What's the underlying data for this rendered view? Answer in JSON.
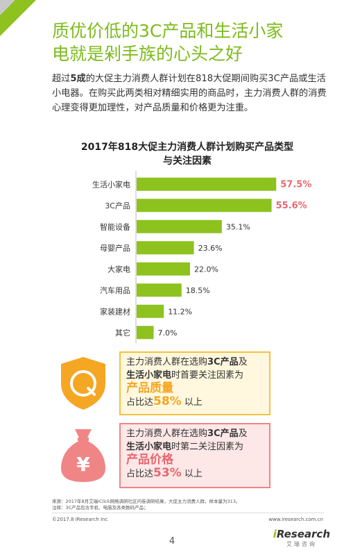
{
  "header": {
    "title_line1": "质优价低的3C产品和生活小家",
    "title_line2": "电就是剁手族的心头之好"
  },
  "intro": {
    "part1": "超过",
    "bold": "5成",
    "part2": "的大促主力消费人群计划在818大促期间购买3C产品或生活小电器。在购买此两类相对精细实用的商品时，主力消费人群的消费心理变得更加理性，对产品质量和价格更为注重。"
  },
  "chart_data": {
    "type": "bar",
    "orientation": "horizontal",
    "title": "2017年818大促主力消费人群计划购买产品类型与关注因素",
    "categories": [
      "生活小家电",
      "3C产品",
      "智能设备",
      "母婴产品",
      "大家电",
      "汽车用品",
      "家装建材",
      "其它"
    ],
    "values": [
      57.5,
      55.6,
      35.1,
      23.6,
      22.0,
      18.5,
      11.2,
      7.0
    ],
    "value_labels": [
      "57.5%",
      "55.6%",
      "35.1%",
      "23.6%",
      "22.0%",
      "18.5%",
      "11.2%",
      "7.0%"
    ],
    "highlight": [
      true,
      true,
      false,
      false,
      false,
      false,
      false,
      false
    ],
    "xlim": [
      0,
      60
    ],
    "bar_color": "#8dc21f",
    "highlight_color": "#e8676f",
    "grid": false,
    "legend": "none",
    "title_line1": "2017年818大促主力消费人群计划购买产品类型",
    "title_line2": "与关注因素"
  },
  "box1": {
    "line1_a": "主力消费人群在选购",
    "line1_b": "3C产品",
    "line1_c": "及",
    "line2_a": "生活小家电",
    "line2_b": "时首要关注因素为",
    "factor": "产品质量",
    "pct_prefix": "占比达",
    "pct": "58%",
    "pct_suffix": " 以上",
    "icon": "shield-q-icon",
    "icon_letter": "Q",
    "color": "#f5a623"
  },
  "box2": {
    "line1_a": "主力消费人群在选购",
    "line1_b": "3C产品",
    "line1_c": "及",
    "line2_a": "生活小家电",
    "line2_b": "时第二关注因素为",
    "factor": "产品价格",
    "pct_prefix": "占比达",
    "pct": "53%",
    "pct_suffix": " 以上",
    "icon": "money-bag-yen-icon",
    "icon_symbol": "¥",
    "color": "#e8676f"
  },
  "notes": {
    "source": "来源：2017年8月艾瑞iClick网络调研社区问卷调研结果，大促主力消费人群，样本量为313。",
    "note": "注释：3C产品包含手机、电脑及各类数码产品；"
  },
  "footer": {
    "copyright": "©2017.8 iResearch Inc",
    "website": "www.iresearch.com.cn",
    "page_number": "4",
    "logo_i": "i",
    "logo_rest": "Research",
    "logo_sub": "艾瑞咨询"
  }
}
